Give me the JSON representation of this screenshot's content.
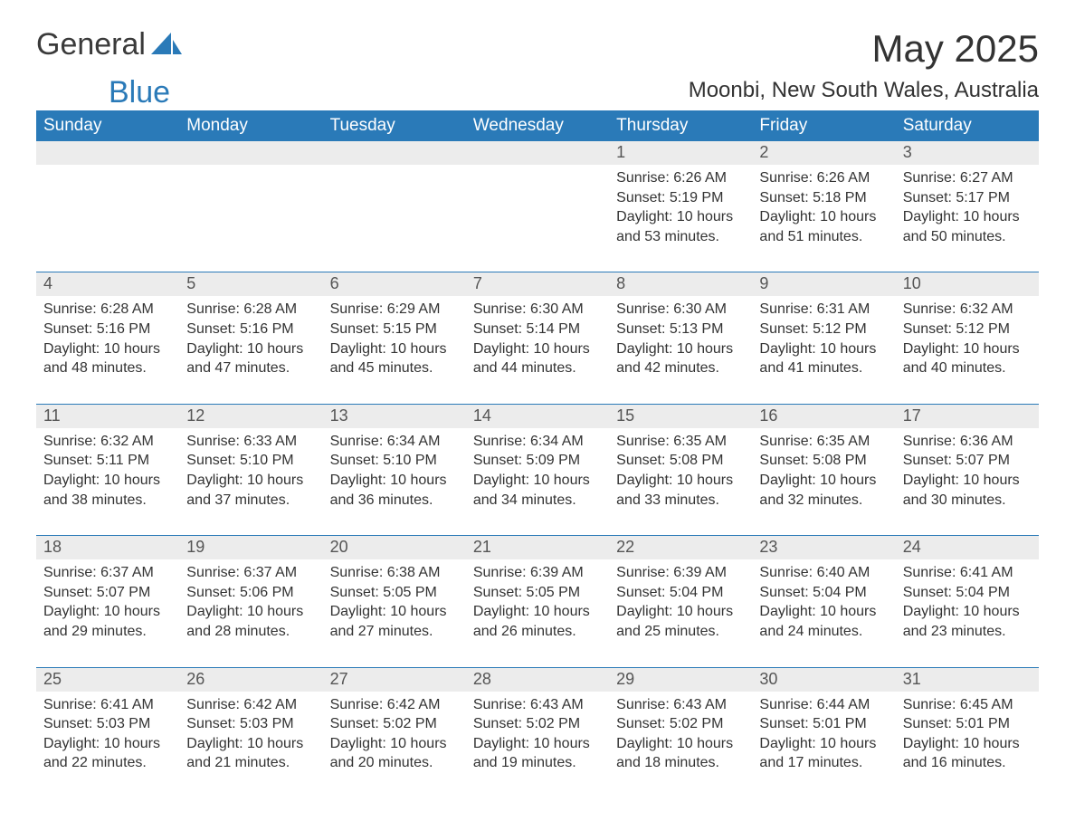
{
  "brand": {
    "word1": "General",
    "word2": "Blue"
  },
  "title": "May 2025",
  "location": "Moonbi, New South Wales, Australia",
  "colors": {
    "accent": "#2a7ab8",
    "header_text": "#ffffff",
    "daynum_bg": "#ececec",
    "daynum_text": "#555555",
    "body_text": "#333333",
    "background": "#ffffff"
  },
  "day_headers": [
    "Sunday",
    "Monday",
    "Tuesday",
    "Wednesday",
    "Thursday",
    "Friday",
    "Saturday"
  ],
  "weeks": [
    [
      {
        "day": "",
        "sunrise": "",
        "sunset": "",
        "daylight": ""
      },
      {
        "day": "",
        "sunrise": "",
        "sunset": "",
        "daylight": ""
      },
      {
        "day": "",
        "sunrise": "",
        "sunset": "",
        "daylight": ""
      },
      {
        "day": "",
        "sunrise": "",
        "sunset": "",
        "daylight": ""
      },
      {
        "day": "1",
        "sunrise": "Sunrise: 6:26 AM",
        "sunset": "Sunset: 5:19 PM",
        "daylight": "Daylight: 10 hours and 53 minutes."
      },
      {
        "day": "2",
        "sunrise": "Sunrise: 6:26 AM",
        "sunset": "Sunset: 5:18 PM",
        "daylight": "Daylight: 10 hours and 51 minutes."
      },
      {
        "day": "3",
        "sunrise": "Sunrise: 6:27 AM",
        "sunset": "Sunset: 5:17 PM",
        "daylight": "Daylight: 10 hours and 50 minutes."
      }
    ],
    [
      {
        "day": "4",
        "sunrise": "Sunrise: 6:28 AM",
        "sunset": "Sunset: 5:16 PM",
        "daylight": "Daylight: 10 hours and 48 minutes."
      },
      {
        "day": "5",
        "sunrise": "Sunrise: 6:28 AM",
        "sunset": "Sunset: 5:16 PM",
        "daylight": "Daylight: 10 hours and 47 minutes."
      },
      {
        "day": "6",
        "sunrise": "Sunrise: 6:29 AM",
        "sunset": "Sunset: 5:15 PM",
        "daylight": "Daylight: 10 hours and 45 minutes."
      },
      {
        "day": "7",
        "sunrise": "Sunrise: 6:30 AM",
        "sunset": "Sunset: 5:14 PM",
        "daylight": "Daylight: 10 hours and 44 minutes."
      },
      {
        "day": "8",
        "sunrise": "Sunrise: 6:30 AM",
        "sunset": "Sunset: 5:13 PM",
        "daylight": "Daylight: 10 hours and 42 minutes."
      },
      {
        "day": "9",
        "sunrise": "Sunrise: 6:31 AM",
        "sunset": "Sunset: 5:12 PM",
        "daylight": "Daylight: 10 hours and 41 minutes."
      },
      {
        "day": "10",
        "sunrise": "Sunrise: 6:32 AM",
        "sunset": "Sunset: 5:12 PM",
        "daylight": "Daylight: 10 hours and 40 minutes."
      }
    ],
    [
      {
        "day": "11",
        "sunrise": "Sunrise: 6:32 AM",
        "sunset": "Sunset: 5:11 PM",
        "daylight": "Daylight: 10 hours and 38 minutes."
      },
      {
        "day": "12",
        "sunrise": "Sunrise: 6:33 AM",
        "sunset": "Sunset: 5:10 PM",
        "daylight": "Daylight: 10 hours and 37 minutes."
      },
      {
        "day": "13",
        "sunrise": "Sunrise: 6:34 AM",
        "sunset": "Sunset: 5:10 PM",
        "daylight": "Daylight: 10 hours and 36 minutes."
      },
      {
        "day": "14",
        "sunrise": "Sunrise: 6:34 AM",
        "sunset": "Sunset: 5:09 PM",
        "daylight": "Daylight: 10 hours and 34 minutes."
      },
      {
        "day": "15",
        "sunrise": "Sunrise: 6:35 AM",
        "sunset": "Sunset: 5:08 PM",
        "daylight": "Daylight: 10 hours and 33 minutes."
      },
      {
        "day": "16",
        "sunrise": "Sunrise: 6:35 AM",
        "sunset": "Sunset: 5:08 PM",
        "daylight": "Daylight: 10 hours and 32 minutes."
      },
      {
        "day": "17",
        "sunrise": "Sunrise: 6:36 AM",
        "sunset": "Sunset: 5:07 PM",
        "daylight": "Daylight: 10 hours and 30 minutes."
      }
    ],
    [
      {
        "day": "18",
        "sunrise": "Sunrise: 6:37 AM",
        "sunset": "Sunset: 5:07 PM",
        "daylight": "Daylight: 10 hours and 29 minutes."
      },
      {
        "day": "19",
        "sunrise": "Sunrise: 6:37 AM",
        "sunset": "Sunset: 5:06 PM",
        "daylight": "Daylight: 10 hours and 28 minutes."
      },
      {
        "day": "20",
        "sunrise": "Sunrise: 6:38 AM",
        "sunset": "Sunset: 5:05 PM",
        "daylight": "Daylight: 10 hours and 27 minutes."
      },
      {
        "day": "21",
        "sunrise": "Sunrise: 6:39 AM",
        "sunset": "Sunset: 5:05 PM",
        "daylight": "Daylight: 10 hours and 26 minutes."
      },
      {
        "day": "22",
        "sunrise": "Sunrise: 6:39 AM",
        "sunset": "Sunset: 5:04 PM",
        "daylight": "Daylight: 10 hours and 25 minutes."
      },
      {
        "day": "23",
        "sunrise": "Sunrise: 6:40 AM",
        "sunset": "Sunset: 5:04 PM",
        "daylight": "Daylight: 10 hours and 24 minutes."
      },
      {
        "day": "24",
        "sunrise": "Sunrise: 6:41 AM",
        "sunset": "Sunset: 5:04 PM",
        "daylight": "Daylight: 10 hours and 23 minutes."
      }
    ],
    [
      {
        "day": "25",
        "sunrise": "Sunrise: 6:41 AM",
        "sunset": "Sunset: 5:03 PM",
        "daylight": "Daylight: 10 hours and 22 minutes."
      },
      {
        "day": "26",
        "sunrise": "Sunrise: 6:42 AM",
        "sunset": "Sunset: 5:03 PM",
        "daylight": "Daylight: 10 hours and 21 minutes."
      },
      {
        "day": "27",
        "sunrise": "Sunrise: 6:42 AM",
        "sunset": "Sunset: 5:02 PM",
        "daylight": "Daylight: 10 hours and 20 minutes."
      },
      {
        "day": "28",
        "sunrise": "Sunrise: 6:43 AM",
        "sunset": "Sunset: 5:02 PM",
        "daylight": "Daylight: 10 hours and 19 minutes."
      },
      {
        "day": "29",
        "sunrise": "Sunrise: 6:43 AM",
        "sunset": "Sunset: 5:02 PM",
        "daylight": "Daylight: 10 hours and 18 minutes."
      },
      {
        "day": "30",
        "sunrise": "Sunrise: 6:44 AM",
        "sunset": "Sunset: 5:01 PM",
        "daylight": "Daylight: 10 hours and 17 minutes."
      },
      {
        "day": "31",
        "sunrise": "Sunrise: 6:45 AM",
        "sunset": "Sunset: 5:01 PM",
        "daylight": "Daylight: 10 hours and 16 minutes."
      }
    ]
  ]
}
